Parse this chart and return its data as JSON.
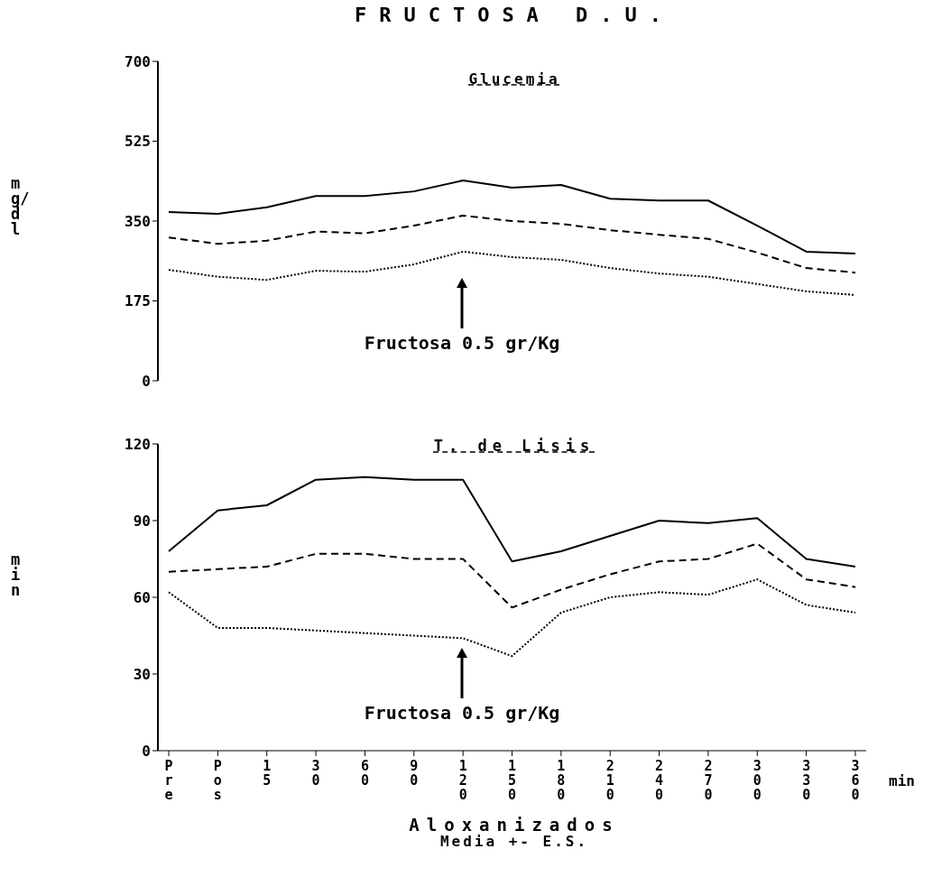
{
  "chart_data": [
    {
      "type": "line",
      "title": "FRUCTOSA D.U.",
      "subtitle": "Glucemia",
      "ylabel": "mg/dl",
      "categories": [
        null,
        null,
        null,
        null,
        null,
        null,
        null,
        null,
        null,
        null,
        null,
        null,
        null,
        null,
        null
      ],
      "ylim": [
        0,
        700
      ],
      "yticks": [
        0,
        175,
        350,
        525,
        700
      ],
      "tick_labels": "y",
      "annotations": [
        "Fructosa 0.5 gr/Kg"
      ],
      "series": [
        {
          "color": "#000000",
          "line_style": "solid",
          "values": [
            370,
            366,
            380,
            405,
            405,
            415,
            439,
            423,
            429,
            399,
            395,
            395,
            340,
            283,
            279
          ]
        },
        {
          "color": "#000000",
          "line_style": "dashed",
          "values": [
            314,
            300,
            307,
            327,
            323,
            340,
            362,
            350,
            344,
            330,
            320,
            311,
            281,
            247,
            237
          ]
        },
        {
          "color": "#000000",
          "line_style": "dotted",
          "values": [
            243,
            228,
            221,
            241,
            239,
            255,
            283,
            271,
            265,
            247,
            235,
            228,
            212,
            196,
            188
          ]
        }
      ]
    },
    {
      "type": "line",
      "title": "T. de Lisis",
      "ylabel": "min",
      "xlabel": "min",
      "categories": [
        "Pre",
        "Pos",
        "15",
        "30",
        "60",
        "90",
        "120",
        "150",
        "180",
        "210",
        "240",
        "270",
        "300",
        "330",
        "360"
      ],
      "ylim": [
        0,
        120
      ],
      "yticks": [
        0,
        30,
        60,
        90,
        120
      ],
      "annotations": [
        "Fructosa 0.5 gr/Kg",
        "Aloxanizados",
        "Media +- E.S."
      ],
      "series": [
        {
          "color": "#000000",
          "line_style": "solid",
          "values": [
            78,
            94,
            96,
            106,
            107,
            106,
            106,
            74,
            78,
            84,
            90,
            89,
            91,
            75,
            72
          ]
        },
        {
          "color": "#000000",
          "line_style": "dashed",
          "values": [
            70,
            71,
            72,
            77,
            77,
            75,
            75,
            56,
            63,
            69,
            74,
            75,
            81,
            67,
            64
          ]
        },
        {
          "color": "#000000",
          "line_style": "dotted",
          "values": [
            62,
            48,
            48,
            47,
            46,
            45,
            44,
            37,
            54,
            60,
            62,
            61,
            67,
            57,
            54
          ]
        }
      ]
    }
  ]
}
